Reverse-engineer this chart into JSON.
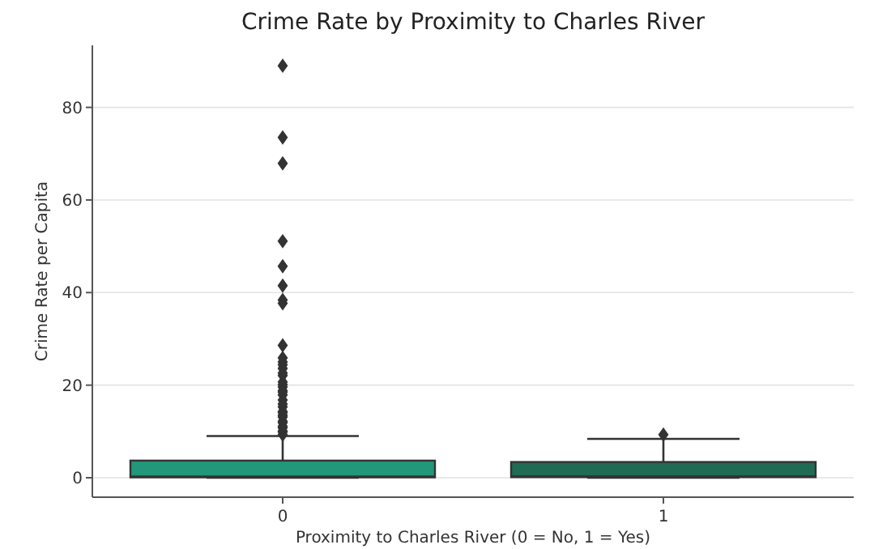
{
  "chart_data": {
    "type": "box",
    "title": "Crime Rate by Proximity to Charles River",
    "xlabel": "Proximity to Charles River (0 = No, 1 = Yes)",
    "ylabel": "Crime Rate per Capita",
    "categories": [
      "0",
      "1"
    ],
    "colors": [
      "#22977a",
      "#1f6b53"
    ],
    "ylim": [
      -4.2,
      93.4
    ],
    "yticks": [
      0,
      20,
      40,
      60,
      80
    ],
    "grid": "y",
    "marker": "diamond",
    "boxes": [
      {
        "low": 0.01,
        "q1": 0.08,
        "median": 0.25,
        "q3": 3.7,
        "high": 9.0,
        "outliers": [
          89.0,
          73.5,
          67.9,
          51.1,
          45.7,
          41.5,
          38.4,
          37.7,
          28.6,
          25.9,
          25.0,
          24.4,
          23.6,
          22.6,
          22.1,
          20.7,
          20.1,
          19.6,
          18.8,
          18.5,
          17.9,
          16.8,
          15.9,
          15.3,
          14.3,
          14.1,
          13.5,
          13.1,
          12.2,
          11.9,
          11.1,
          10.8,
          10.1,
          9.9,
          9.3
        ]
      },
      {
        "low": 0.01,
        "q1": 0.12,
        "median": 0.3,
        "q3": 3.4,
        "high": 8.4,
        "outliers": [
          9.3
        ]
      }
    ]
  }
}
